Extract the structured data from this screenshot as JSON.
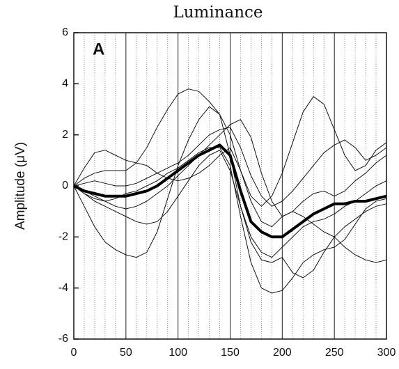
{
  "chart_data": {
    "type": "line",
    "title": "Luminance",
    "panel_label": "A",
    "ylabel": "Amplitude (μV)",
    "x": [
      0,
      10,
      20,
      30,
      40,
      50,
      60,
      70,
      80,
      90,
      100,
      110,
      120,
      130,
      140,
      150,
      160,
      170,
      180,
      190,
      200,
      210,
      220,
      230,
      240,
      250,
      260,
      270,
      280,
      290,
      300
    ],
    "xlim": [
      0,
      300
    ],
    "xticks": [
      0,
      50,
      100,
      150,
      200,
      250,
      300
    ],
    "xminorticks": [
      10,
      20,
      30,
      40,
      60,
      70,
      80,
      90,
      110,
      120,
      130,
      140,
      160,
      170,
      180,
      190,
      210,
      220,
      230,
      240,
      260,
      270,
      280,
      290
    ],
    "ylim": [
      -6,
      6
    ],
    "yticks": [
      -6,
      -4,
      -2,
      0,
      2,
      4,
      6
    ],
    "series": [
      {
        "color": "#111",
        "width": 1,
        "values": [
          0,
          0.3,
          0.5,
          0.6,
          0.6,
          0.6,
          0.9,
          1.5,
          2.3,
          3.0,
          3.6,
          3.8,
          3.7,
          3.3,
          2.8,
          1.2,
          -0.8,
          -2.0,
          -2.6,
          -2.8,
          -2.4,
          -2.0,
          -1.6,
          -1.4,
          -1.3,
          -1.1,
          -0.8,
          -0.6,
          -0.3,
          0,
          0.2
        ]
      },
      {
        "color": "#111",
        "width": 1,
        "values": [
          0,
          0.7,
          1.3,
          1.4,
          1.2,
          1.0,
          0.9,
          0.8,
          0.5,
          0.3,
          0.2,
          0.3,
          0.5,
          0.8,
          1.2,
          1.5,
          0.6,
          -0.4,
          -0.8,
          -0.4,
          0.5,
          1.7,
          2.9,
          3.5,
          3.2,
          2.2,
          1.2,
          0.6,
          0.8,
          1.4,
          1.7
        ]
      },
      {
        "color": "#111",
        "width": 1,
        "values": [
          0,
          -0.8,
          -1.6,
          -2.2,
          -2.5,
          -2.7,
          -2.8,
          -2.6,
          -1.8,
          -0.5,
          0.8,
          1.8,
          2.6,
          3.1,
          2.8,
          2.0,
          0.6,
          -0.6,
          -1.4,
          -1.6,
          -1.2,
          -1.0,
          -1.2,
          -1.5,
          -1.8,
          -2.0,
          -2.4,
          -2.7,
          -2.9,
          -3.0,
          -2.9
        ]
      },
      {
        "color": "#111",
        "width": 1,
        "values": [
          0,
          -0.3,
          -0.5,
          -0.6,
          -0.5,
          -0.3,
          -0.2,
          0,
          0.2,
          0.5,
          0.7,
          1.0,
          1.3,
          1.5,
          1.5,
          0.8,
          -1.2,
          -3.0,
          -4.0,
          -4.2,
          -4.1,
          -3.6,
          -3.0,
          -2.7,
          -2.5,
          -2.4,
          -2.1,
          -1.5,
          -0.9,
          -0.6,
          -0.5
        ]
      },
      {
        "color": "#111",
        "width": 1,
        "values": [
          0,
          -0.2,
          -0.4,
          -0.6,
          -0.8,
          -0.9,
          -0.8,
          -0.6,
          -0.3,
          0,
          0.4,
          0.8,
          1.2,
          1.6,
          2.0,
          2.4,
          2.6,
          1.9,
          0.5,
          -0.6,
          -1.2,
          -1.0,
          -0.6,
          -0.3,
          -0.2,
          -0.4,
          -0.2,
          0.2,
          0.5,
          0.9,
          1.2
        ]
      },
      {
        "color": "#111",
        "width": 1,
        "values": [
          0,
          -0.3,
          -0.6,
          -0.8,
          -1.0,
          -1.2,
          -1.4,
          -1.5,
          -1.4,
          -1.0,
          -0.4,
          0.2,
          0.8,
          1.2,
          1.4,
          0.6,
          -0.8,
          -2.2,
          -2.9,
          -3.0,
          -2.8,
          -3.4,
          -3.6,
          -3.3,
          -2.6,
          -2.0,
          -1.6,
          -1.3,
          -1.0,
          -0.8,
          -0.7
        ]
      },
      {
        "color": "#111",
        "width": 1,
        "values": [
          0,
          0.1,
          0.2,
          0.1,
          0,
          0,
          0.1,
          0.3,
          0.5,
          0.7,
          0.9,
          1.2,
          1.6,
          2.0,
          2.2,
          2.3,
          1.5,
          0.4,
          -0.4,
          -0.8,
          -0.6,
          -0.2,
          0.3,
          0.8,
          1.3,
          1.6,
          1.8,
          1.5,
          1.0,
          1.2,
          1.5
        ]
      },
      {
        "color": "#000",
        "width": 4,
        "values": [
          0,
          -0.2,
          -0.3,
          -0.4,
          -0.4,
          -0.4,
          -0.3,
          -0.2,
          0,
          0.3,
          0.6,
          0.9,
          1.2,
          1.4,
          1.6,
          1.2,
          -0.2,
          -1.4,
          -1.8,
          -2.0,
          -2.0,
          -1.7,
          -1.4,
          -1.1,
          -0.9,
          -0.7,
          -0.7,
          -0.6,
          -0.6,
          -0.5,
          -0.4
        ]
      }
    ]
  }
}
